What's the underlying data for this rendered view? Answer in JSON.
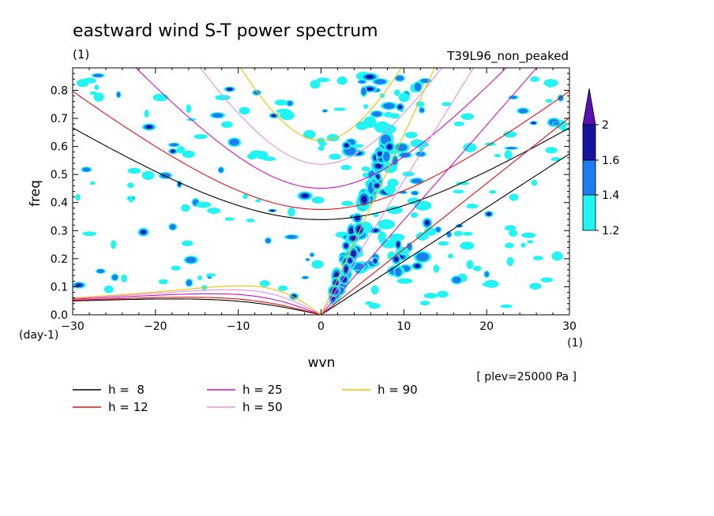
{
  "chart_data": {
    "type": "heatmap",
    "title": "eastward wind S-T power spectrum",
    "title_unit": "(1)",
    "run_name": "T39L96_non_peaked",
    "xlabel": "wvn",
    "x_unit": "(1)",
    "ylabel": "freq",
    "y_unit": "(day-1)",
    "xlim": [
      -30,
      30
    ],
    "ylim": [
      0,
      0.88
    ],
    "x_ticks": [
      "-30",
      "-20",
      "-10",
      "0",
      "10",
      "20",
      "30"
    ],
    "y_ticks": [
      "0.0",
      "0.1",
      "0.2",
      "0.3",
      "0.4",
      "0.5",
      "0.6",
      "0.7",
      "0.8"
    ],
    "plev_label": "[ plev=25000 Pa ]",
    "colorbar": {
      "levels": [
        1.2,
        1.4,
        1.6,
        2
      ],
      "tick_labels": [
        "1.2",
        "1.4",
        "1.6",
        "2"
      ],
      "colors": [
        "#22f4f4",
        "#1c7cf0",
        "#1414a0",
        "#5a10b0"
      ]
    },
    "dispersion_curves": [
      {
        "label": "h =  8",
        "h": 8,
        "color": "#000000"
      },
      {
        "label": "h = 12",
        "h": 12,
        "color": "#e01010"
      },
      {
        "label": "h = 25",
        "h": 25,
        "color": "#d010c0"
      },
      {
        "label": "h = 50",
        "h": 50,
        "color": "#e090e0"
      },
      {
        "label": "h = 90",
        "h": 90,
        "color": "#f0c000"
      }
    ],
    "kelvin_power_ridge": {
      "wvn": [
        1,
        3,
        5,
        7,
        9
      ],
      "freq": [
        0.03,
        0.15,
        0.3,
        0.45,
        0.7
      ],
      "max_level": 2
    }
  }
}
